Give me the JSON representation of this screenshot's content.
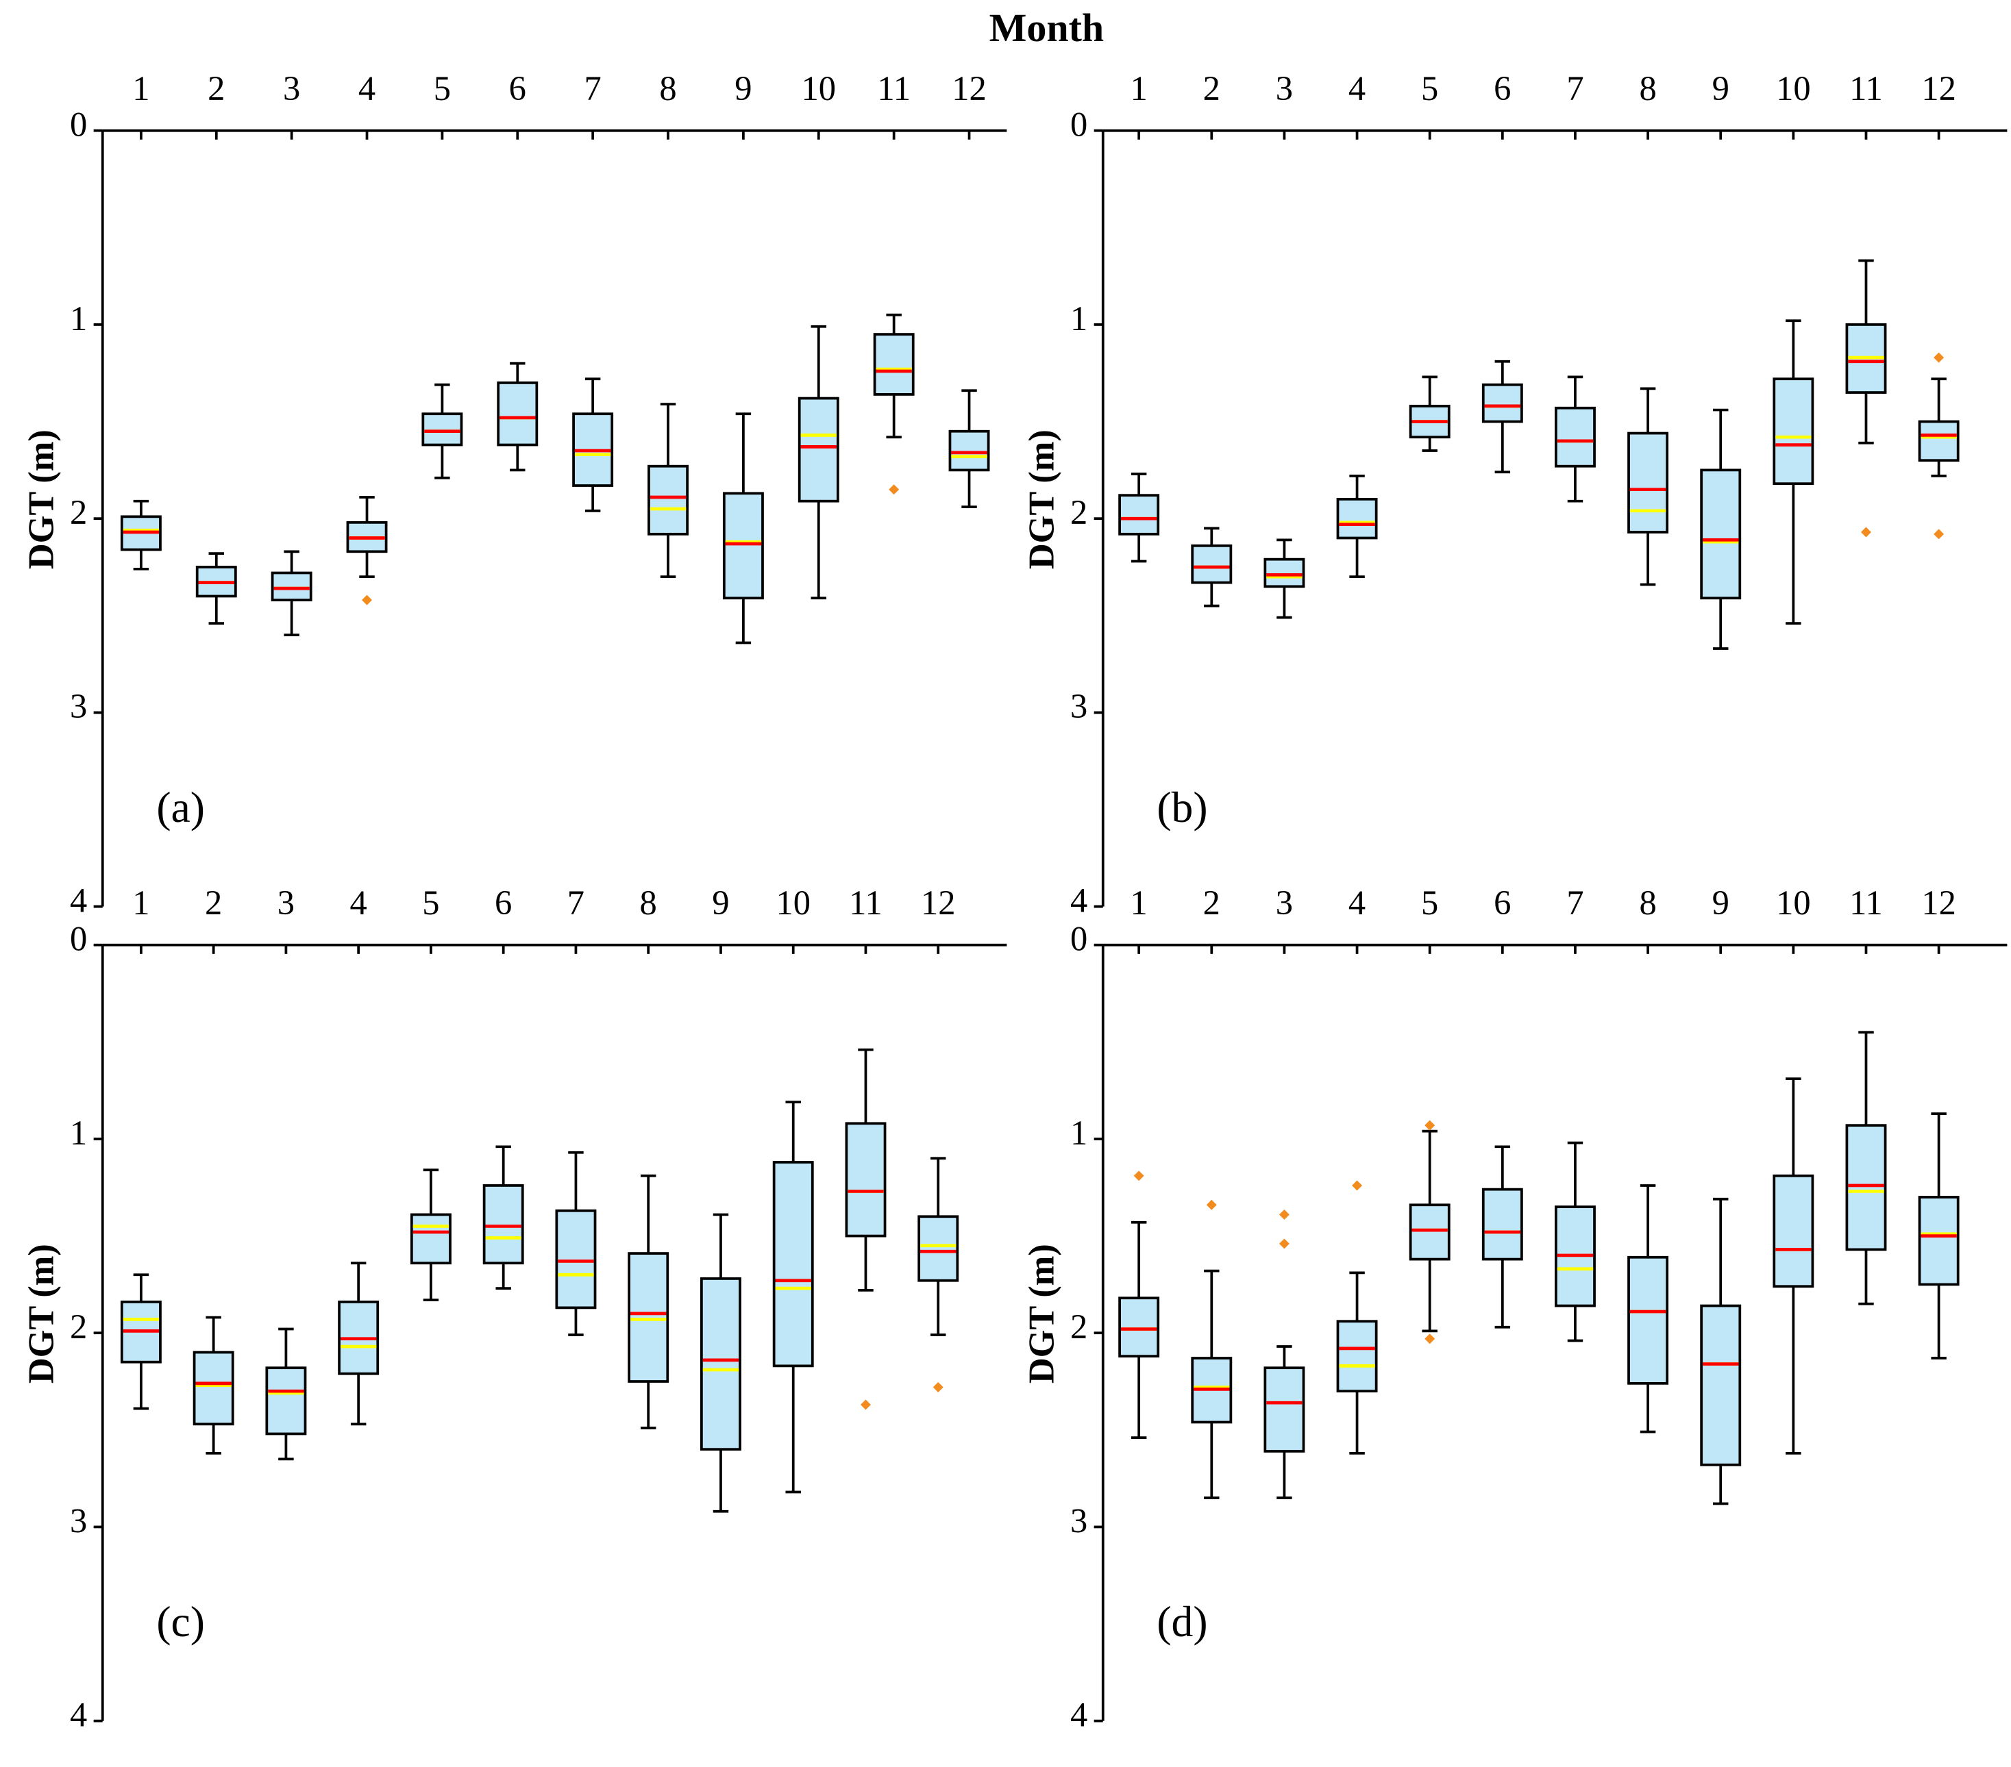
{
  "chart_data": [
    {
      "type": "box",
      "xlabel": "Month",
      "ylabel": "DGT (m)",
      "panel_label": "(a)",
      "categories": [
        1,
        2,
        3,
        4,
        5,
        6,
        7,
        8,
        9,
        10,
        11,
        12
      ],
      "ylim": [
        0,
        4
      ],
      "yticks": [
        0,
        1,
        2,
        3,
        4
      ],
      "y_inverted": true,
      "box_color": "#bfe7f8",
      "median_color": "#ff0000",
      "mean_color": "#ffff00",
      "outlier_color": "#f28c1e",
      "whisker_low": [
        1.91,
        2.18,
        2.17,
        1.89,
        1.31,
        1.2,
        1.28,
        1.41,
        1.46,
        1.01,
        0.95,
        1.34
      ],
      "q1": [
        1.99,
        2.25,
        2.28,
        2.02,
        1.46,
        1.3,
        1.46,
        1.73,
        1.87,
        1.38,
        1.05,
        1.55
      ],
      "median": [
        2.07,
        2.33,
        2.36,
        2.1,
        1.55,
        1.48,
        1.65,
        1.89,
        2.13,
        1.63,
        1.24,
        1.66
      ],
      "mean": [
        2.06,
        2.33,
        2.36,
        2.1,
        1.55,
        1.48,
        1.67,
        1.95,
        2.12,
        1.57,
        1.23,
        1.68
      ],
      "q3": [
        2.16,
        2.4,
        2.42,
        2.17,
        1.62,
        1.62,
        1.83,
        2.08,
        2.41,
        1.91,
        1.36,
        1.75
      ],
      "whisker_high": [
        2.26,
        2.54,
        2.6,
        2.3,
        1.79,
        1.75,
        1.96,
        2.3,
        2.64,
        2.41,
        1.58,
        1.94
      ],
      "outliers": {
        "x": [
          4,
          11
        ],
        "y": [
          2.42,
          1.85
        ]
      }
    },
    {
      "type": "box",
      "ylabel": "DGT (m)",
      "panel_label": "(b)",
      "categories": [
        1,
        2,
        3,
        4,
        5,
        6,
        7,
        8,
        9,
        10,
        11,
        12
      ],
      "ylim": [
        0,
        4
      ],
      "yticks": [
        0,
        1,
        2,
        3,
        4
      ],
      "y_inverted": true,
      "box_color": "#bfe7f8",
      "median_color": "#ff0000",
      "mean_color": "#ffff00",
      "outlier_color": "#f28c1e",
      "whisker_low": [
        1.77,
        2.05,
        2.11,
        1.78,
        1.27,
        1.19,
        1.27,
        1.33,
        1.44,
        0.98,
        0.67,
        1.28
      ],
      "q1": [
        1.88,
        2.14,
        2.21,
        1.9,
        1.42,
        1.31,
        1.43,
        1.56,
        1.75,
        1.28,
        1.0,
        1.5
      ],
      "median": [
        2.0,
        2.25,
        2.29,
        2.03,
        1.5,
        1.42,
        1.6,
        1.85,
        2.11,
        1.62,
        1.19,
        1.57
      ],
      "mean": [
        2.0,
        2.25,
        2.3,
        2.02,
        1.5,
        1.42,
        1.6,
        1.96,
        2.12,
        1.58,
        1.17,
        1.58
      ],
      "q3": [
        2.08,
        2.33,
        2.35,
        2.1,
        1.58,
        1.5,
        1.73,
        2.07,
        2.41,
        1.82,
        1.35,
        1.7
      ],
      "whisker_high": [
        2.22,
        2.45,
        2.51,
        2.3,
        1.65,
        1.76,
        1.91,
        2.34,
        2.67,
        2.54,
        1.61,
        1.78
      ],
      "outliers": {
        "x": [
          11,
          12,
          12
        ],
        "y": [
          2.07,
          1.17,
          2.08
        ]
      }
    },
    {
      "type": "box",
      "ylabel": "DGT (m)",
      "panel_label": "(c)",
      "categories": [
        1,
        2,
        3,
        4,
        5,
        6,
        7,
        8,
        9,
        10,
        11,
        12
      ],
      "ylim": [
        0,
        4
      ],
      "yticks": [
        0,
        1,
        2,
        3,
        4
      ],
      "y_inverted": true,
      "box_color": "#bfe7f8",
      "median_color": "#ff0000",
      "mean_color": "#ffff00",
      "outlier_color": "#f28c1e",
      "whisker_low": [
        1.7,
        1.92,
        1.98,
        1.64,
        1.16,
        1.04,
        1.07,
        1.19,
        1.39,
        0.81,
        0.54,
        1.1
      ],
      "q1": [
        1.84,
        2.1,
        2.18,
        1.84,
        1.39,
        1.24,
        1.37,
        1.59,
        1.72,
        1.12,
        0.92,
        1.4
      ],
      "median": [
        1.99,
        2.26,
        2.3,
        2.03,
        1.48,
        1.45,
        1.63,
        1.9,
        2.14,
        1.73,
        1.27,
        1.58
      ],
      "mean": [
        1.93,
        2.27,
        2.31,
        2.07,
        1.45,
        1.51,
        1.7,
        1.93,
        2.19,
        1.77,
        1.27,
        1.55
      ],
      "q3": [
        2.15,
        2.47,
        2.52,
        2.21,
        1.64,
        1.64,
        1.87,
        2.25,
        2.6,
        2.17,
        1.5,
        1.73
      ],
      "whisker_high": [
        2.39,
        2.62,
        2.65,
        2.47,
        1.83,
        1.77,
        2.01,
        2.49,
        2.92,
        2.82,
        1.78,
        2.01
      ],
      "outliers": {
        "x": [
          11,
          12
        ],
        "y": [
          2.37,
          2.28
        ]
      }
    },
    {
      "type": "box",
      "ylabel": "DGT (m)",
      "panel_label": "(d)",
      "categories": [
        1,
        2,
        3,
        4,
        5,
        6,
        7,
        8,
        9,
        10,
        11,
        12
      ],
      "ylim": [
        0,
        4
      ],
      "yticks": [
        0,
        1,
        2,
        3,
        4
      ],
      "y_inverted": true,
      "box_color": "#bfe7f8",
      "median_color": "#ff0000",
      "mean_color": "#ffff00",
      "outlier_color": "#f28c1e",
      "whisker_low": [
        1.43,
        1.68,
        2.07,
        1.69,
        0.96,
        1.04,
        1.02,
        1.24,
        1.31,
        0.69,
        0.45,
        0.87
      ],
      "q1": [
        1.82,
        2.13,
        2.18,
        1.94,
        1.34,
        1.26,
        1.35,
        1.61,
        1.86,
        1.19,
        0.93,
        1.3
      ],
      "median": [
        1.98,
        2.29,
        2.36,
        2.08,
        1.47,
        1.48,
        1.6,
        1.89,
        2.16,
        1.57,
        1.24,
        1.5
      ],
      "mean": [
        1.98,
        2.28,
        2.36,
        2.17,
        1.47,
        1.48,
        1.67,
        1.89,
        2.16,
        1.57,
        1.27,
        1.49
      ],
      "q3": [
        2.12,
        2.46,
        2.61,
        2.3,
        1.62,
        1.62,
        1.86,
        2.26,
        2.68,
        1.76,
        1.57,
        1.75
      ],
      "whisker_high": [
        2.54,
        2.85,
        2.85,
        2.62,
        1.99,
        1.97,
        2.04,
        2.51,
        2.88,
        2.62,
        1.85,
        2.13
      ],
      "outliers": {
        "x": [
          1,
          2,
          3,
          3,
          4,
          5,
          5
        ],
        "y": [
          1.19,
          1.34,
          1.39,
          1.54,
          1.24,
          0.93,
          2.03
        ]
      }
    }
  ]
}
